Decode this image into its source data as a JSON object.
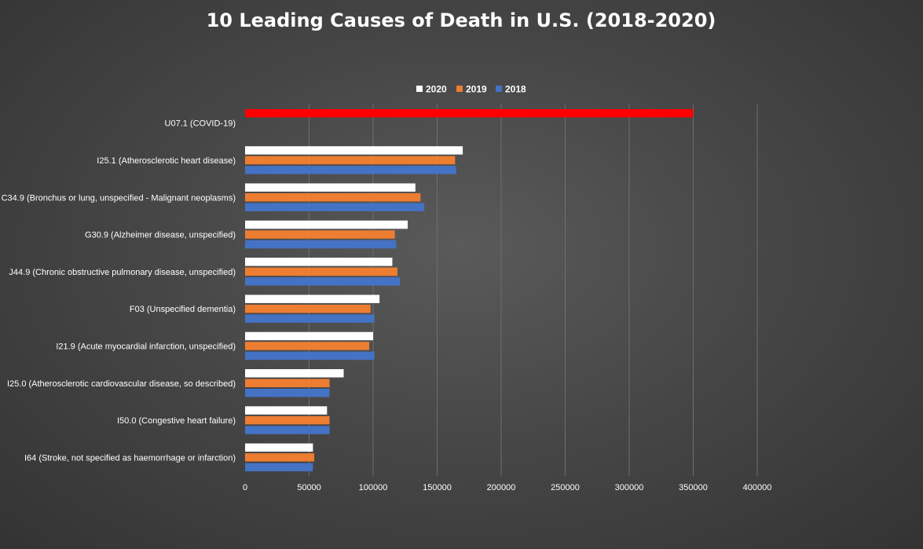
{
  "chart_data": {
    "type": "bar",
    "orientation": "horizontal",
    "title": "10 Leading Causes of Death in U.S. (2018-2020)",
    "xlabel": "",
    "ylabel": "",
    "xlim": [
      0,
      400000
    ],
    "x_ticks": [
      "0",
      "50000",
      "100000",
      "150000",
      "200000",
      "250000",
      "300000",
      "350000",
      "400000"
    ],
    "grid": "vertical",
    "legend_position": "top",
    "categories": [
      "U07.1 (COVID-19)",
      "I25.1 (Atherosclerotic heart disease)",
      "C34.9 (Bronchus or lung, unspecified - Malignant neoplasms)",
      "G30.9 (Alzheimer disease, unspecified)",
      "J44.9 (Chronic obstructive pulmonary disease, unspecified)",
      "F03 (Unspecified dementia)",
      "I21.9 (Acute myocardial infarction, unspecified)",
      "I25.0 (Atherosclerotic cardiovascular disease, so described)",
      "I50.0 (Congestive heart failure)",
      "I64 (Stroke, not specified as haemorrhage or infarction)"
    ],
    "series": [
      {
        "name": "2020",
        "color": "#ffffff",
        "values": [
          350000,
          170000,
          133000,
          127000,
          115000,
          105000,
          100000,
          77000,
          64000,
          53000
        ]
      },
      {
        "name": "2019",
        "color": "#ed7d31",
        "values": [
          null,
          164000,
          137000,
          117000,
          119000,
          98000,
          97000,
          66000,
          66000,
          54000
        ]
      },
      {
        "name": "2018",
        "color": "#4472c4",
        "values": [
          null,
          165000,
          140000,
          118000,
          121000,
          101000,
          101000,
          66000,
          66000,
          53000
        ]
      }
    ],
    "highlight": {
      "category": "U07.1 (COVID-19)",
      "series": "2020",
      "color": "#ff0000"
    }
  }
}
